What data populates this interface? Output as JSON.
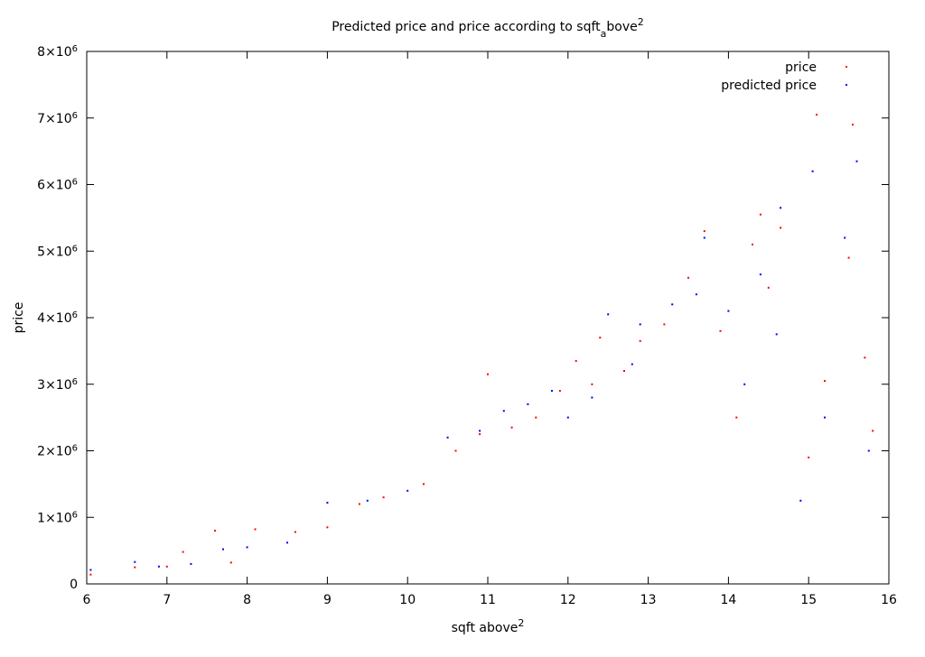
{
  "chart_data": {
    "type": "scatter",
    "title": "Predicted price and price according to sqft",
    "title_subscript": "a",
    "title_suffix": "bove",
    "title_superscript": "2",
    "xlabel": "sqft above",
    "xlabel_superscript": "2",
    "ylabel": "price",
    "xlim": [
      6,
      16
    ],
    "ylim": [
      0,
      8000000
    ],
    "x_ticks": [
      6,
      7,
      8,
      9,
      10,
      11,
      12,
      13,
      14,
      15,
      16
    ],
    "x_tick_labels": [
      "6",
      "7",
      "8",
      "9",
      "10",
      "11",
      "12",
      "13",
      "14",
      "15",
      "16"
    ],
    "y_ticks": [
      0,
      1000000,
      2000000,
      3000000,
      4000000,
      5000000,
      6000000,
      7000000,
      8000000
    ],
    "y_tick_labels": [
      "0",
      "1×10",
      "2×10",
      "3×10",
      "4×10",
      "5×10",
      "6×10",
      "7×10",
      "8×10"
    ],
    "y_tick_exponent": "6",
    "grid": false,
    "legend_position": "top-right",
    "series": [
      {
        "name": "price",
        "color": "#ff0000",
        "marker": "dot",
        "points": [
          [
            6.05,
            140000
          ],
          [
            6.6,
            250000
          ],
          [
            7.0,
            260000
          ],
          [
            7.2,
            480000
          ],
          [
            7.6,
            800000
          ],
          [
            7.8,
            320000
          ],
          [
            8.1,
            820000
          ],
          [
            8.6,
            780000
          ],
          [
            9.0,
            850000
          ],
          [
            9.4,
            1200000
          ],
          [
            9.7,
            1300000
          ],
          [
            10.2,
            1500000
          ],
          [
            10.6,
            2000000
          ],
          [
            10.9,
            2250000
          ],
          [
            11.0,
            3150000
          ],
          [
            11.3,
            2350000
          ],
          [
            11.6,
            2500000
          ],
          [
            11.9,
            2900000
          ],
          [
            12.1,
            3350000
          ],
          [
            12.3,
            3000000
          ],
          [
            12.4,
            3700000
          ],
          [
            12.7,
            3200000
          ],
          [
            12.9,
            3650000
          ],
          [
            13.2,
            3900000
          ],
          [
            13.5,
            4600000
          ],
          [
            13.7,
            5300000
          ],
          [
            13.9,
            3800000
          ],
          [
            14.1,
            2500000
          ],
          [
            14.3,
            5100000
          ],
          [
            14.4,
            5550000
          ],
          [
            14.5,
            4450000
          ],
          [
            14.65,
            5350000
          ],
          [
            15.0,
            1900000
          ],
          [
            15.1,
            7050000
          ],
          [
            15.2,
            3050000
          ],
          [
            15.5,
            4900000
          ],
          [
            15.55,
            6900000
          ],
          [
            15.7,
            3400000
          ],
          [
            15.8,
            2300000
          ]
        ]
      },
      {
        "name": "predicted price",
        "color": "#0000ff",
        "marker": "dot",
        "points": [
          [
            6.05,
            210000
          ],
          [
            6.6,
            330000
          ],
          [
            6.9,
            260000
          ],
          [
            7.3,
            300000
          ],
          [
            7.7,
            520000
          ],
          [
            8.0,
            550000
          ],
          [
            8.5,
            620000
          ],
          [
            9.0,
            1220000
          ],
          [
            9.5,
            1250000
          ],
          [
            10.0,
            1400000
          ],
          [
            10.5,
            2200000
          ],
          [
            10.9,
            2300000
          ],
          [
            11.2,
            2600000
          ],
          [
            11.5,
            2700000
          ],
          [
            11.8,
            2900000
          ],
          [
            12.0,
            2500000
          ],
          [
            12.3,
            2800000
          ],
          [
            12.5,
            4050000
          ],
          [
            12.8,
            3300000
          ],
          [
            12.9,
            3900000
          ],
          [
            13.3,
            4200000
          ],
          [
            13.6,
            4350000
          ],
          [
            13.7,
            5200000
          ],
          [
            14.0,
            4100000
          ],
          [
            14.2,
            3000000
          ],
          [
            14.4,
            4650000
          ],
          [
            14.6,
            3750000
          ],
          [
            14.65,
            5650000
          ],
          [
            14.9,
            1250000
          ],
          [
            15.05,
            6200000
          ],
          [
            15.2,
            2500000
          ],
          [
            15.45,
            5200000
          ],
          [
            15.6,
            6350000
          ],
          [
            15.75,
            2000000
          ]
        ]
      }
    ]
  }
}
